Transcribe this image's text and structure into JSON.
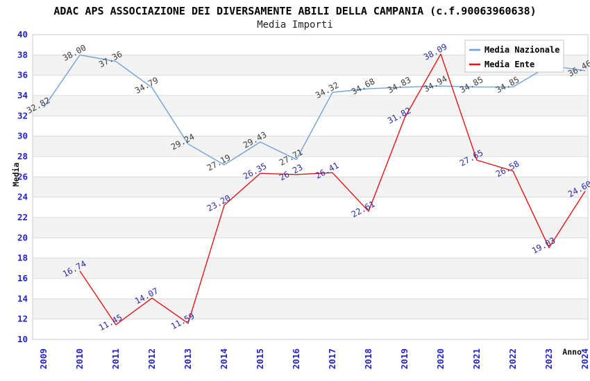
{
  "header": {
    "title": "ADAC APS ASSOCIAZIONE DEI DIVERSAMENTE ABILI DELLA CAMPANIA (c.f.90063960638)",
    "subtitle": "Media Importi"
  },
  "chart_data": {
    "type": "line",
    "title": "ADAC APS ASSOCIAZIONE DEI DIVERSAMENTE ABILI DELLA CAMPANIA (c.f.90063960638)",
    "subtitle": "Media Importi",
    "categories": [
      "2009",
      "2010",
      "2011",
      "2012",
      "2013",
      "2014",
      "2015",
      "2016",
      "2017",
      "2018",
      "2019",
      "2020",
      "2021",
      "2022",
      "2023",
      "2024"
    ],
    "series": [
      {
        "name": "Media Nazionale",
        "color": "#6ea2dc",
        "label_color": "#3c3c3c",
        "values": [
          32.82,
          38.0,
          37.36,
          34.79,
          29.24,
          27.19,
          29.43,
          27.71,
          34.32,
          34.68,
          34.83,
          34.94,
          34.85,
          34.85,
          36.95,
          36.46
        ],
        "hidden_label_indices": [
          14
        ]
      },
      {
        "name": "Media Ente",
        "color": "#e81212",
        "label_color": "#2929a8",
        "values": [
          null,
          16.74,
          11.45,
          14.07,
          11.59,
          23.2,
          26.35,
          26.23,
          26.41,
          22.61,
          31.82,
          38.09,
          27.65,
          26.58,
          19.03,
          24.6
        ],
        "hidden_label_indices": []
      }
    ],
    "xlabel": "Anno",
    "ylabel": "Media",
    "ylim": [
      10,
      40
    ],
    "ytick_step": 2,
    "grid": true,
    "legend": {
      "position": "top-right",
      "entries": [
        "Media Nazionale",
        "Media Ente"
      ]
    },
    "style": {
      "axis_text_color": "#2222cc",
      "grid_color": "#dcdcdc",
      "band_color": "#f3f3f3",
      "border_color": "#c9c9c9",
      "legend_border_color": "#c4c4c4",
      "legend_bg": "#ffffff"
    }
  }
}
